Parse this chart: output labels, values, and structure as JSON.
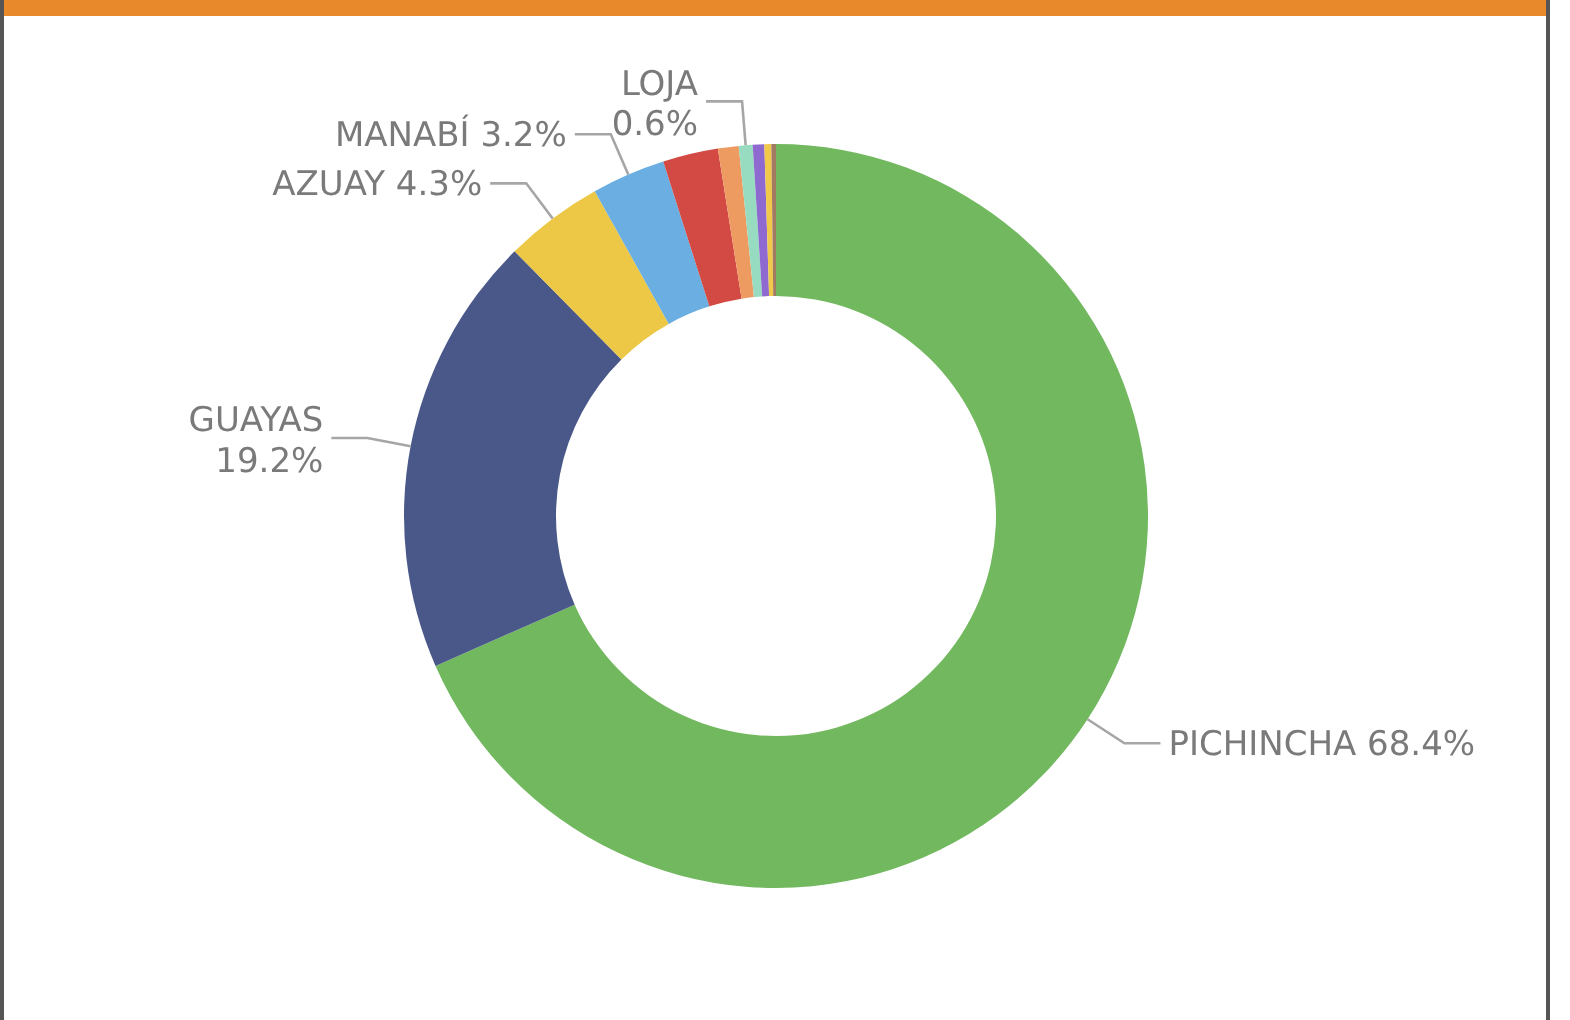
{
  "chart_data": {
    "type": "donut",
    "categories": [
      "PICHINCHA",
      "GUAYAS",
      "AZUAY",
      "MANABÍ",
      null,
      null,
      "LOJA",
      null,
      null,
      null
    ],
    "values": [
      68.4,
      19.2,
      4.3,
      3.2,
      2.4,
      0.9,
      0.6,
      0.5,
      0.3,
      0.2
    ],
    "colors": [
      "#72b85f",
      "#4a5889",
      "#ecc846",
      "#6aaee2",
      "#d24a43",
      "#ee9b62",
      "#97dbc0",
      "#8e69cf",
      "#f0c94a",
      "#a17a61"
    ],
    "value_labels": [
      "68.4%",
      "19.2%",
      "4.3%",
      "3.2%",
      null,
      null,
      "0.6%",
      null,
      null,
      null
    ],
    "legend": false
  }
}
